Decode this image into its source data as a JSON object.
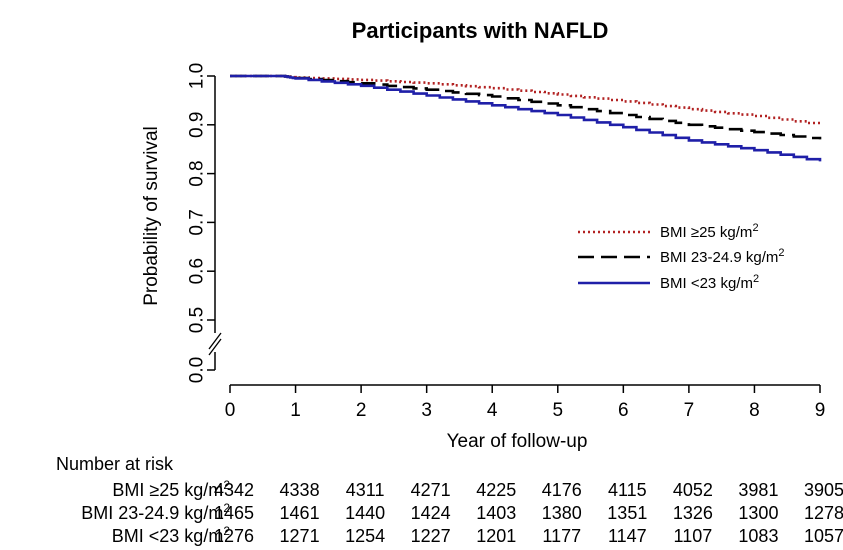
{
  "chart_data": {
    "type": "line",
    "title": "Participants with NAFLD",
    "xlabel": "Year of follow-up",
    "ylabel": "Probability of survival",
    "x_ticks": [
      "0",
      "1",
      "2",
      "3",
      "4",
      "5",
      "6",
      "7",
      "8",
      "9"
    ],
    "y_ticks": [
      "0.0",
      "0.5",
      "0.6",
      "0.7",
      "0.8",
      "0.9",
      "1.0"
    ],
    "xlim": [
      0,
      9
    ],
    "ylim": [
      0.5,
      1.0
    ],
    "y_axis_break": true,
    "grid": false,
    "legend_position": "right",
    "series": [
      {
        "name": "BMI ≥25 kg/m",
        "name_sup": "2",
        "style": "dotted",
        "color": "#b22222",
        "x": [
          0,
          0.8,
          1,
          2,
          3,
          4,
          5,
          6,
          7,
          8,
          9
        ],
        "y": [
          1.0,
          1.0,
          0.997,
          0.992,
          0.985,
          0.975,
          0.962,
          0.948,
          0.932,
          0.918,
          0.9
        ]
      },
      {
        "name": "BMI 23-24.9 kg/m",
        "name_sup": "2",
        "style": "dashed",
        "color": "#000000",
        "x": [
          0,
          0.8,
          1,
          2,
          3,
          4,
          5,
          6,
          7,
          8,
          9
        ],
        "y": [
          1.0,
          1.0,
          0.996,
          0.985,
          0.972,
          0.958,
          0.94,
          0.92,
          0.9,
          0.885,
          0.87
        ]
      },
      {
        "name": "BMI <23 kg/m",
        "name_sup": "2",
        "style": "solid",
        "color": "#1f1fa8",
        "x": [
          0,
          0.8,
          1,
          2,
          3,
          4,
          5,
          6,
          7,
          8,
          9
        ],
        "y": [
          1.0,
          1.0,
          0.995,
          0.98,
          0.96,
          0.94,
          0.92,
          0.895,
          0.868,
          0.848,
          0.825
        ]
      }
    ],
    "risk_table": {
      "header": "Number at risk",
      "rows": [
        {
          "label": "BMI ≥25 kg/m",
          "sup": "2",
          "values": [
            "4342",
            "4338",
            "4311",
            "4271",
            "4225",
            "4176",
            "4115",
            "4052",
            "3981",
            "3905"
          ]
        },
        {
          "label": "BMI 23-24.9 kg/m",
          "sup": "2",
          "values": [
            "1465",
            "1461",
            "1440",
            "1424",
            "1403",
            "1380",
            "1351",
            "1326",
            "1300",
            "1278"
          ]
        },
        {
          "label": "BMI <23 kg/m",
          "sup": "2",
          "values": [
            "1276",
            "1271",
            "1254",
            "1227",
            "1201",
            "1177",
            "1147",
            "1107",
            "1083",
            "1057"
          ]
        }
      ]
    }
  }
}
